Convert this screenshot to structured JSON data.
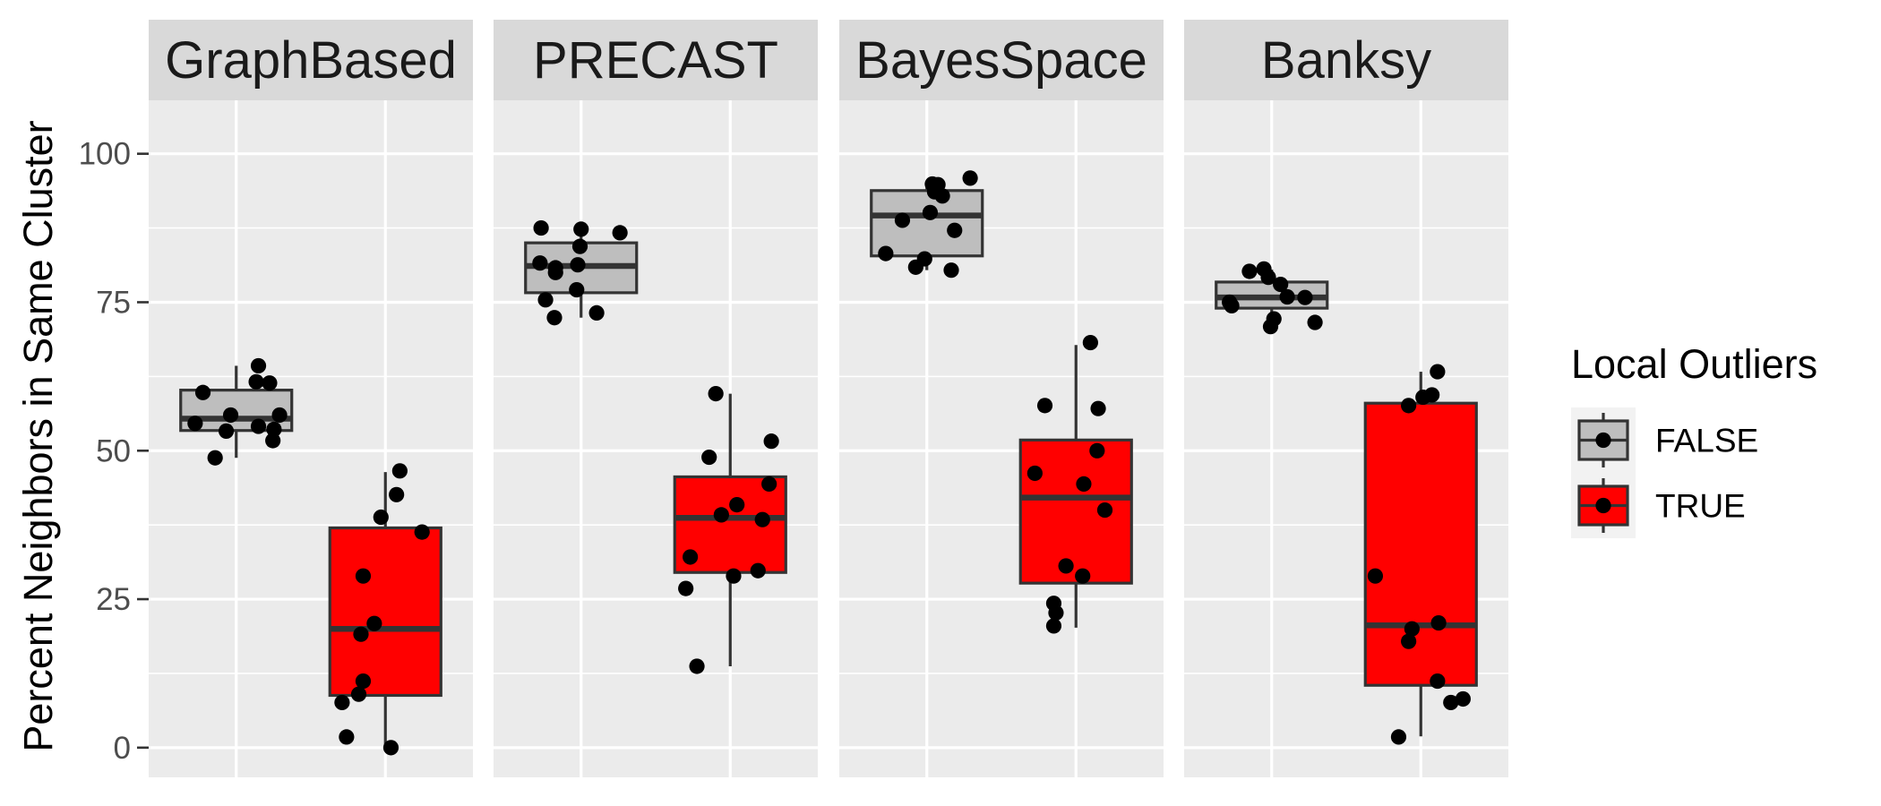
{
  "chart_data": {
    "type": "boxplot",
    "facets": [
      "GraphBased",
      "PRECAST",
      "BayesSpace",
      "Banksy"
    ],
    "groups": [
      "FALSE",
      "TRUE"
    ],
    "ylabel": "Percent Neighbors in Same Cluster",
    "xlabel": "",
    "ylim": [
      -5,
      109
    ],
    "yticks": [
      0,
      25,
      50,
      75,
      100
    ],
    "grid": true,
    "legend": {
      "title": "Local Outliers",
      "position": "right",
      "entries": [
        {
          "label": "FALSE",
          "color": "#BEBEBE"
        },
        {
          "label": "TRUE",
          "color": "#FF0000"
        }
      ]
    },
    "colors": {
      "FALSE": "#BEBEBE",
      "TRUE": "#FF0000",
      "outline": "#333333",
      "point": "#000000"
    },
    "panels": [
      {
        "name": "GraphBased",
        "boxes": [
          {
            "group": "FALSE",
            "min": 48.8,
            "q1": 53.4,
            "median": 55.4,
            "q3": 60.2,
            "max": 64.3,
            "points": [
              [
                -0.37,
                54.6
              ],
              [
                -0.3,
                59.8
              ],
              [
                -0.19,
                48.8
              ],
              [
                -0.09,
                53.3
              ],
              [
                -0.05,
                56.0
              ],
              [
                0.18,
                61.6
              ],
              [
                0.2,
                54.1
              ],
              [
                0.2,
                64.3
              ],
              [
                0.3,
                61.4
              ],
              [
                0.33,
                51.7
              ],
              [
                0.34,
                53.6
              ],
              [
                0.39,
                56.0
              ]
            ]
          },
          {
            "group": "TRUE",
            "min": 0.0,
            "q1": 8.8,
            "median": 20.0,
            "q3": 37.0,
            "max": 46.4,
            "points": [
              [
                -0.39,
                7.6
              ],
              [
                -0.35,
                1.8
              ],
              [
                -0.24,
                9.0
              ],
              [
                -0.22,
                19.1
              ],
              [
                -0.2,
                11.2
              ],
              [
                -0.2,
                28.9
              ],
              [
                -0.1,
                20.9
              ],
              [
                -0.04,
                38.8
              ],
              [
                0.05,
                0.0
              ],
              [
                0.1,
                42.6
              ],
              [
                0.13,
                46.6
              ],
              [
                0.33,
                36.3
              ]
            ]
          }
        ]
      },
      {
        "name": "PRECAST",
        "boxes": [
          {
            "group": "FALSE",
            "min": 72.4,
            "q1": 76.6,
            "median": 81.1,
            "q3": 85.0,
            "max": 87.3,
            "points": [
              [
                -0.37,
                81.6
              ],
              [
                -0.36,
                87.5
              ],
              [
                -0.32,
                75.4
              ],
              [
                -0.24,
                72.4
              ],
              [
                -0.23,
                80.0
              ],
              [
                -0.23,
                80.8
              ],
              [
                -0.04,
                77.1
              ],
              [
                -0.03,
                81.3
              ],
              [
                -0.01,
                84.4
              ],
              [
                0.0,
                87.3
              ],
              [
                0.14,
                73.2
              ],
              [
                0.35,
                86.7
              ]
            ]
          },
          {
            "group": "TRUE",
            "min": 13.7,
            "q1": 29.5,
            "median": 38.7,
            "q3": 45.6,
            "max": 59.6,
            "points": [
              [
                -0.4,
                26.8
              ],
              [
                -0.36,
                32.1
              ],
              [
                -0.3,
                13.7
              ],
              [
                -0.19,
                48.9
              ],
              [
                -0.13,
                59.6
              ],
              [
                -0.08,
                39.2
              ],
              [
                0.03,
                28.9
              ],
              [
                0.06,
                40.9
              ],
              [
                0.25,
                29.8
              ],
              [
                0.29,
                38.4
              ],
              [
                0.35,
                44.4
              ],
              [
                0.37,
                51.6
              ]
            ]
          }
        ]
      },
      {
        "name": "BayesSpace",
        "boxes": [
          {
            "group": "FALSE",
            "min": 80.4,
            "q1": 82.8,
            "median": 89.6,
            "q3": 93.8,
            "max": 95.4,
            "points": [
              [
                -0.37,
                83.2
              ],
              [
                -0.22,
                88.8
              ],
              [
                -0.1,
                80.9
              ],
              [
                -0.02,
                82.3
              ],
              [
                0.03,
                90.1
              ],
              [
                0.05,
                94.9
              ],
              [
                0.07,
                93.6
              ],
              [
                0.1,
                94.8
              ],
              [
                0.14,
                92.9
              ],
              [
                0.22,
                80.4
              ],
              [
                0.25,
                87.1
              ],
              [
                0.39,
                95.9
              ]
            ]
          },
          {
            "group": "TRUE",
            "min": 20.2,
            "q1": 27.7,
            "median": 42.1,
            "q3": 51.8,
            "max": 67.8,
            "points": [
              [
                -0.37,
                46.2
              ],
              [
                -0.28,
                57.6
              ],
              [
                -0.2,
                20.5
              ],
              [
                -0.2,
                24.3
              ],
              [
                -0.18,
                22.7
              ],
              [
                -0.09,
                30.6
              ],
              [
                0.06,
                28.9
              ],
              [
                0.07,
                44.4
              ],
              [
                0.13,
                68.2
              ],
              [
                0.2,
                57.1
              ],
              [
                0.19,
                50.0
              ],
              [
                0.26,
                40.0
              ]
            ]
          }
        ]
      },
      {
        "name": "Banksy",
        "boxes": [
          {
            "group": "FALSE",
            "min": 70.8,
            "q1": 74.0,
            "median": 75.8,
            "q3": 78.4,
            "max": 80.5,
            "points": [
              [
                -0.38,
                75.0
              ],
              [
                -0.36,
                74.4
              ],
              [
                -0.2,
                80.2
              ],
              [
                -0.07,
                80.6
              ],
              [
                -0.03,
                79.2
              ],
              [
                -0.01,
                70.9
              ],
              [
                0.02,
                72.2
              ],
              [
                0.08,
                78.0
              ],
              [
                0.14,
                75.9
              ],
              [
                0.3,
                75.8
              ],
              [
                0.39,
                71.6
              ]
            ]
          },
          {
            "group": "TRUE",
            "min": 1.9,
            "q1": 10.5,
            "median": 20.6,
            "q3": 58.0,
            "max": 63.3,
            "points": [
              [
                -0.41,
                28.9
              ],
              [
                -0.2,
                1.8
              ],
              [
                -0.11,
                17.9
              ],
              [
                -0.11,
                57.6
              ],
              [
                -0.08,
                20.0
              ],
              [
                0.02,
                59.0
              ],
              [
                0.1,
                59.4
              ],
              [
                0.15,
                11.2
              ],
              [
                0.16,
                21.0
              ],
              [
                0.15,
                63.3
              ],
              [
                0.27,
                7.6
              ],
              [
                0.38,
                8.2
              ]
            ]
          }
        ]
      }
    ]
  }
}
